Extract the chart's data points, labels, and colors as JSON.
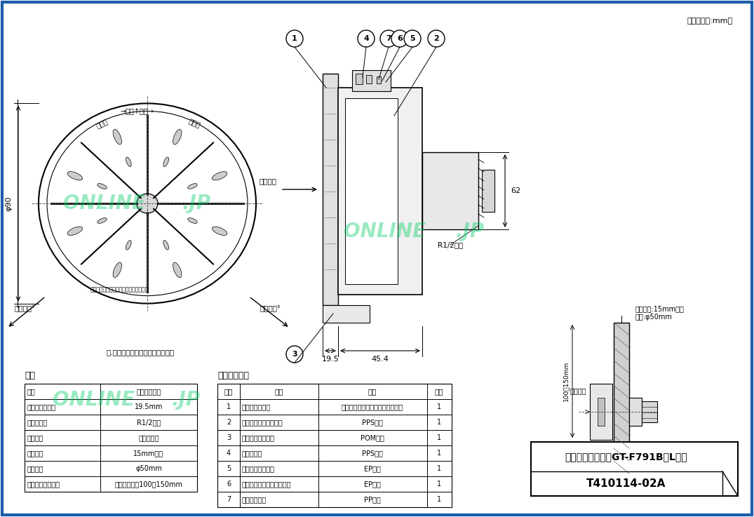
{
  "bg_color": "#ffffff",
  "border_color": "#1a5fa8",
  "watermark_color": "#00cc66",
  "unit_text": "（寸法単位:mm）",
  "title_name": "浴様アダプター　GT-F791B（L型）",
  "code_text": "T410114-02A",
  "spec_title": "仕様",
  "parts_title": "品名・材質等",
  "spec_rows": [
    [
      "極性",
      "無極性タイプ"
    ],
    [
      "フィルター厚み",
      "19.5mm"
    ],
    [
      "配管接続部",
      "R1/2ねじ"
    ],
    [
      "施工方法",
      "一人施工用"
    ],
    [
      "浴様厚さ",
      "15mm以下"
    ],
    [
      "浴様穴径",
      "φ50mm"
    ],
    [
      "浴様への取付位置",
      "浴様底部から100～150mm"
    ]
  ],
  "parts_headers": [
    "品番",
    "品名",
    "材質",
    "個数"
  ],
  "parts_rows": [
    [
      "1",
      "フィルター金具",
      "オーステナイト系ステンレス銅板",
      "1"
    ],
    [
      "2",
      "浴様アダプターボディ",
      "PPS樹脂",
      "1"
    ],
    [
      "3",
      "フィルターガイド",
      "POM樹脂",
      "1"
    ],
    [
      "4",
      "浴様ボルト",
      "PPS樹脂",
      "1"
    ],
    [
      "5",
      "浴様受けパッキン",
      "EPゴム",
      "1"
    ],
    [
      "6",
      "浴様ボルトパッキン（黒）",
      "EPゴム",
      "1"
    ],
    [
      "7",
      "スペラシイタ",
      "PP樹脂",
      "1"
    ]
  ],
  "note_text": "注.循環時は片側どちらかのみ吐出",
  "suck_text": "吸込方向",
  "discharge1": "吐出方向²",
  "discharge2": "吐出方向³",
  "r_thread": "R1/2ねじ",
  "dim_195": "19.5",
  "dim_454": "45.4",
  "dim_62": "62",
  "dim_phi90": "φ90",
  "bath_thick_text": "浴様厚さ:15mm以下",
  "bath_hole_text": "穴径:φ50mm",
  "bath_inner_text": "浴様内側",
  "bath_range_text": "100～150mm"
}
